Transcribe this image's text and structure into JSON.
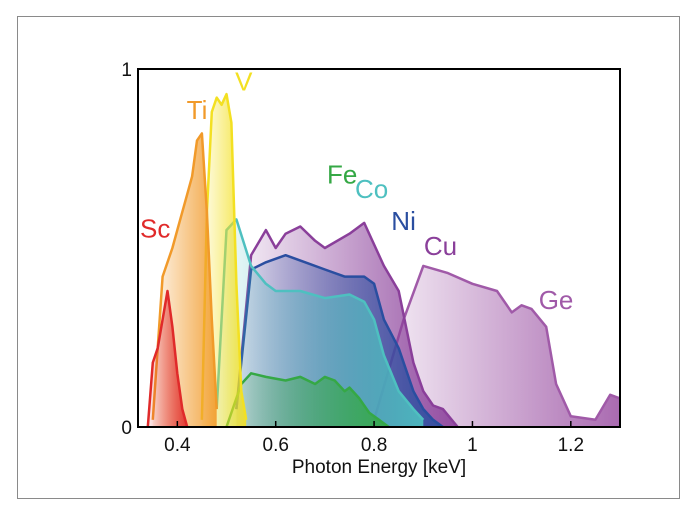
{
  "chart_data": {
    "type": "area",
    "title": "",
    "xlabel": "Photon Energy [keV]",
    "ylabel": "",
    "xlim": [
      0.32,
      1.3
    ],
    "ylim": [
      0,
      1
    ],
    "x_ticks": [
      0.4,
      0.6,
      0.8,
      1,
      1.2
    ],
    "y_ticks": [
      0,
      1
    ],
    "grid": false,
    "legend": "none",
    "series": [
      {
        "name": "Ge",
        "color": "#a05aa8",
        "x": [
          0.8,
          0.86,
          0.9,
          0.95,
          1.0,
          1.05,
          1.08,
          1.1,
          1.12,
          1.15,
          1.17,
          1.2,
          1.25,
          1.28,
          1.3
        ],
        "y": [
          0.02,
          0.3,
          0.45,
          0.43,
          0.4,
          0.38,
          0.32,
          0.34,
          0.33,
          0.28,
          0.12,
          0.03,
          0.02,
          0.09,
          0.08
        ]
      },
      {
        "name": "Cu",
        "color": "#8a3f9a",
        "x": [
          0.52,
          0.55,
          0.58,
          0.6,
          0.62,
          0.65,
          0.68,
          0.7,
          0.75,
          0.78,
          0.82,
          0.85,
          0.88,
          0.9,
          0.92,
          0.94,
          0.97
        ],
        "y": [
          0.05,
          0.48,
          0.55,
          0.5,
          0.54,
          0.56,
          0.52,
          0.5,
          0.54,
          0.57,
          0.45,
          0.38,
          0.18,
          0.1,
          0.06,
          0.05,
          0.0
        ]
      },
      {
        "name": "Ni",
        "color": "#2a4ea0",
        "x": [
          0.52,
          0.55,
          0.58,
          0.62,
          0.66,
          0.7,
          0.74,
          0.78,
          0.8,
          0.82,
          0.85,
          0.88,
          0.9,
          0.92,
          0.94
        ],
        "y": [
          0.05,
          0.44,
          0.46,
          0.48,
          0.46,
          0.44,
          0.42,
          0.42,
          0.4,
          0.3,
          0.22,
          0.1,
          0.05,
          0.02,
          0.0
        ]
      },
      {
        "name": "Co",
        "color": "#4ec0c0",
        "x": [
          0.48,
          0.5,
          0.52,
          0.55,
          0.58,
          0.6,
          0.65,
          0.7,
          0.75,
          0.78,
          0.8,
          0.82,
          0.85,
          0.88,
          0.9
        ],
        "y": [
          0.05,
          0.55,
          0.58,
          0.45,
          0.4,
          0.38,
          0.38,
          0.36,
          0.37,
          0.35,
          0.3,
          0.2,
          0.1,
          0.05,
          0.02
        ]
      },
      {
        "name": "Fe",
        "color": "#35a845",
        "x": [
          0.5,
          0.53,
          0.55,
          0.58,
          0.62,
          0.65,
          0.68,
          0.7,
          0.72,
          0.74,
          0.75,
          0.77,
          0.79,
          0.81,
          0.83
        ],
        "y": [
          0.0,
          0.12,
          0.15,
          0.14,
          0.13,
          0.14,
          0.12,
          0.14,
          0.13,
          0.1,
          0.11,
          0.08,
          0.04,
          0.02,
          0.0
        ]
      },
      {
        "name": "V",
        "color": "#f3e022",
        "x": [
          0.45,
          0.46,
          0.47,
          0.48,
          0.49,
          0.5,
          0.51,
          0.52,
          0.53,
          0.54
        ],
        "y": [
          0.02,
          0.6,
          0.88,
          0.92,
          0.9,
          0.93,
          0.85,
          0.4,
          0.1,
          0.02
        ]
      },
      {
        "name": "Ti",
        "color": "#f19a2a",
        "x": [
          0.35,
          0.37,
          0.39,
          0.4,
          0.42,
          0.43,
          0.44,
          0.45,
          0.46,
          0.47,
          0.48
        ],
        "y": [
          0.02,
          0.42,
          0.5,
          0.55,
          0.65,
          0.7,
          0.8,
          0.82,
          0.6,
          0.3,
          0.05
        ]
      },
      {
        "name": "Sc",
        "color": "#e02a2a",
        "x": [
          0.34,
          0.35,
          0.36,
          0.37,
          0.38,
          0.39,
          0.4,
          0.41,
          0.42
        ],
        "y": [
          0.0,
          0.18,
          0.22,
          0.3,
          0.38,
          0.28,
          0.15,
          0.05,
          0.0
        ]
      }
    ]
  }
}
